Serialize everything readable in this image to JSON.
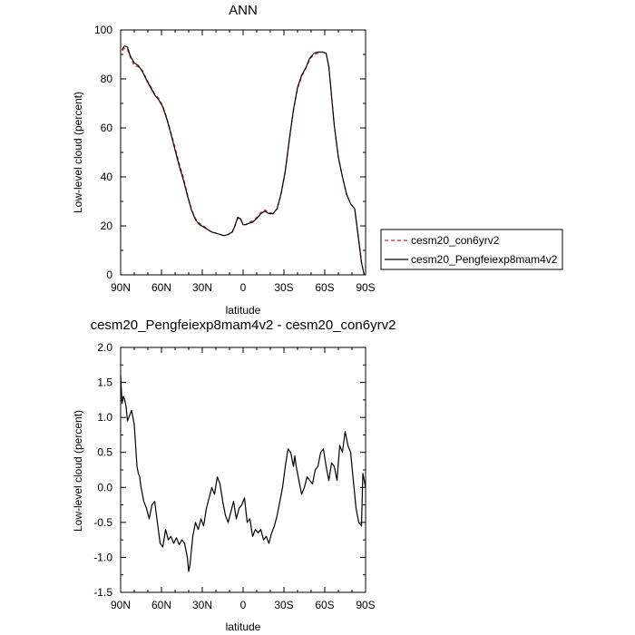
{
  "chart_data": [
    {
      "type": "line",
      "title": "ANN",
      "xlabel": "latitude",
      "ylabel": "Low-level cloud (percent)",
      "ylim": [
        0,
        100
      ],
      "xlim": [
        90,
        -90
      ],
      "yticks": [
        "0",
        "20",
        "40",
        "60",
        "80",
        "100"
      ],
      "xticks": [
        "90N",
        "60N",
        "30N",
        "0",
        "30S",
        "60S",
        "90S"
      ],
      "legend": {
        "placement": "right"
      },
      "series": [
        {
          "name": "cesm20_con6yrv2",
          "color": "#e8231d",
          "dash": "dashed",
          "x": [
            89,
            87,
            85,
            83,
            80,
            77,
            74,
            71,
            68,
            65,
            62,
            59,
            56,
            53,
            50,
            47,
            44,
            41,
            38,
            35,
            32,
            29,
            26,
            23,
            20,
            17,
            14,
            11,
            8,
            6,
            4,
            2,
            0,
            -2,
            -4,
            -7,
            -10,
            -13,
            -16,
            -19,
            -22,
            -25,
            -28,
            -31,
            -34,
            -37,
            -40,
            -43,
            -46,
            -49,
            -52,
            -55,
            -58,
            -61,
            -63,
            -65,
            -67,
            -70,
            -73,
            -76,
            -79,
            -82,
            -85,
            -87,
            -89
          ],
          "y": [
            91.5,
            92.5,
            92,
            89,
            85.5,
            85,
            83.5,
            80,
            77,
            74,
            72,
            69,
            64,
            58,
            52,
            45.5,
            40,
            33,
            27,
            23,
            21,
            20,
            18.5,
            17.5,
            17,
            16.5,
            16,
            16.5,
            17.5,
            20,
            23,
            23,
            20.5,
            20.5,
            21.5,
            22,
            23.5,
            25.5,
            26.5,
            25.5,
            25,
            27,
            33,
            42,
            55,
            67,
            76,
            81,
            84,
            88,
            90,
            90.5,
            91,
            90.5,
            85,
            73,
            61,
            48,
            40,
            33,
            29,
            27,
            14,
            5,
            0
          ]
        },
        {
          "name": "cesm20_Pengfeiexp8mam4v2",
          "color": "#000000",
          "dash": "solid",
          "x": [
            89,
            87,
            85,
            83,
            80,
            77,
            74,
            71,
            68,
            65,
            62,
            59,
            56,
            53,
            50,
            47,
            44,
            41,
            38,
            35,
            32,
            29,
            26,
            23,
            20,
            17,
            14,
            11,
            8,
            6,
            4,
            2,
            0,
            -2,
            -4,
            -7,
            -10,
            -13,
            -16,
            -19,
            -22,
            -25,
            -28,
            -31,
            -34,
            -37,
            -40,
            -43,
            -46,
            -49,
            -52,
            -55,
            -58,
            -61,
            -63,
            -65,
            -67,
            -70,
            -73,
            -76,
            -79,
            -82,
            -85,
            -87,
            -89
          ],
          "y": [
            92,
            93.5,
            93,
            89.5,
            86.5,
            85.5,
            83,
            79.5,
            76.5,
            73.5,
            71.5,
            68.5,
            63.5,
            57.5,
            51,
            44.5,
            39,
            32.5,
            26.5,
            22.5,
            20.5,
            19.5,
            18.5,
            17.5,
            17,
            16.5,
            16,
            16.5,
            17.5,
            20,
            23.5,
            23,
            20.5,
            20.5,
            21,
            21.5,
            23,
            25,
            26,
            25,
            25,
            27,
            33.5,
            42.5,
            55.5,
            67.5,
            76.5,
            81.5,
            84.5,
            88.5,
            90.5,
            91,
            91,
            90.5,
            85,
            73,
            61,
            48,
            40,
            33,
            29,
            27,
            14,
            5,
            0
          ]
        }
      ]
    },
    {
      "type": "line",
      "title": "cesm20_Pengfeiexp8mam4v2 - cesm20_con6yrv2",
      "xlabel": "latitude",
      "ylabel": "Low-level cloud (percent)",
      "ylim": [
        -1.5,
        2.0
      ],
      "xlim": [
        90,
        -90
      ],
      "yticks": [
        "-1.5",
        "-1.0",
        "-0.5",
        "0.0",
        "0.5",
        "1.0",
        "1.5",
        "2.0"
      ],
      "xticks": [
        "90N",
        "60N",
        "30N",
        "0",
        "30S",
        "60S",
        "90S"
      ],
      "series": [
        {
          "color": "#000000",
          "dash": "solid",
          "x": [
            90,
            89,
            88,
            87,
            86,
            85,
            84,
            83,
            82,
            81,
            80,
            79,
            78,
            77,
            76,
            75,
            73,
            71,
            69,
            67,
            65,
            63,
            61,
            59,
            57,
            55,
            53,
            51,
            49,
            47,
            45,
            43,
            41,
            40,
            39,
            37,
            35,
            33,
            31,
            29,
            27,
            25,
            23,
            21,
            19,
            17,
            15,
            13,
            11,
            9,
            7,
            5,
            3,
            1,
            -1,
            -3,
            -5,
            -7,
            -9,
            -11,
            -13,
            -15,
            -17,
            -19,
            -21,
            -23,
            -25,
            -27,
            -29,
            -31,
            -33,
            -35,
            -37,
            -38,
            -39,
            -41,
            -43,
            -45,
            -47,
            -49,
            -51,
            -53,
            -55,
            -57,
            -59,
            -61,
            -63,
            -65,
            -67,
            -69,
            -71,
            -73,
            -75,
            -77,
            -79,
            -81,
            -83,
            -85,
            -87,
            -88,
            -89,
            -90
          ],
          "y": [
            1.6,
            1.2,
            1.3,
            1.25,
            1.15,
            0.95,
            1.0,
            1.05,
            1.1,
            1.0,
            0.9,
            0.6,
            0.3,
            0.2,
            0.15,
            0.0,
            -0.2,
            -0.3,
            -0.45,
            -0.25,
            -0.2,
            -0.5,
            -0.8,
            -0.85,
            -0.6,
            -0.75,
            -0.7,
            -0.8,
            -0.72,
            -0.82,
            -0.75,
            -0.8,
            -1.0,
            -1.2,
            -1.1,
            -0.7,
            -0.5,
            -0.6,
            -0.45,
            -0.55,
            -0.3,
            -0.15,
            0.0,
            -0.1,
            0.15,
            0.05,
            -0.2,
            -0.4,
            -0.5,
            -0.35,
            -0.2,
            -0.45,
            -0.3,
            -0.25,
            -0.15,
            -0.5,
            -0.45,
            -0.7,
            -0.6,
            -0.65,
            -0.6,
            -0.75,
            -0.7,
            -0.8,
            -0.65,
            -0.55,
            -0.4,
            -0.2,
            0.0,
            0.3,
            0.55,
            0.5,
            0.3,
            0.45,
            0.3,
            0.1,
            -0.1,
            0.0,
            0.15,
            0.1,
            0.05,
            0.25,
            0.3,
            0.5,
            0.55,
            0.3,
            0.1,
            0.35,
            0.3,
            0.1,
            0.6,
            0.5,
            0.8,
            0.6,
            0.5,
            0.1,
            -0.3,
            -0.5,
            -0.55,
            0.2,
            0.1,
            0.0
          ]
        }
      ]
    }
  ]
}
